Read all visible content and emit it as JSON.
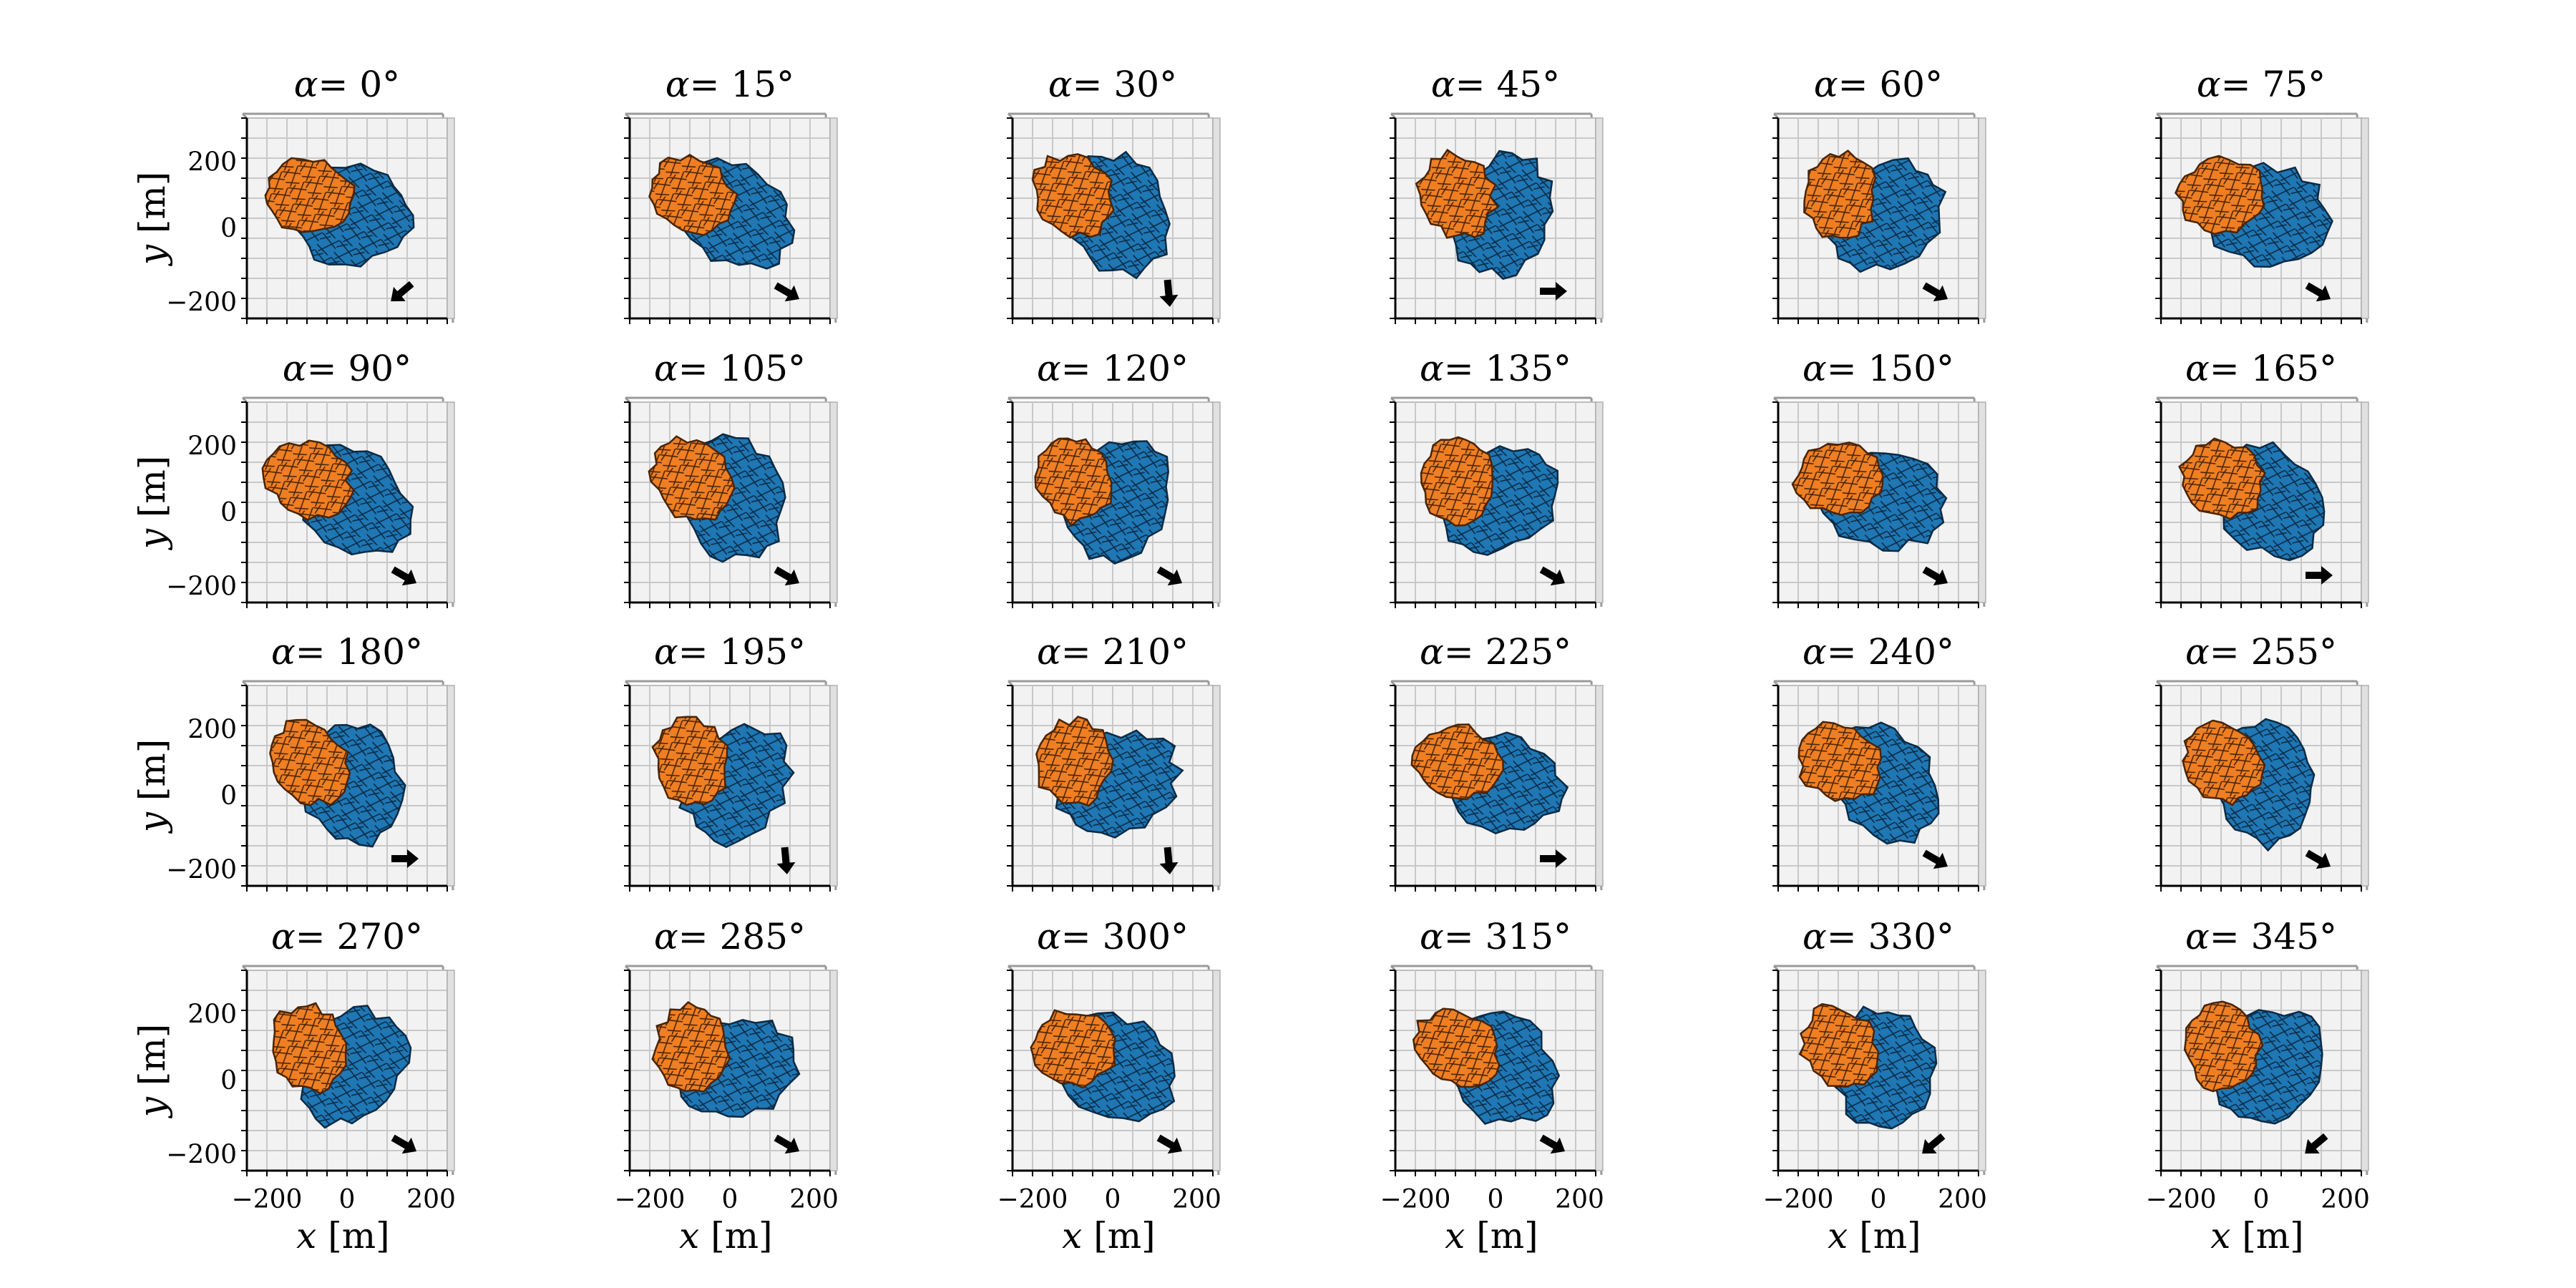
{
  "figure": {
    "title_prefix": "α=",
    "degree_symbol": "°",
    "axes": {
      "x_label_var": "x",
      "x_label_unit": " [m]",
      "y_label_var": "y",
      "y_label_unit": " [m]",
      "x_ticks": [
        "−200",
        "0",
        "200"
      ],
      "y_ticks": [
        "200",
        "0",
        "−200"
      ]
    },
    "colors": {
      "orange": "#ef7f22",
      "blue": "#1f77b4",
      "grid": "#c8c8c8",
      "pane": "#f2f2f2"
    },
    "panels": [
      {
        "alpha": "0",
        "arrow": "sw"
      },
      {
        "alpha": "15",
        "arrow": "se"
      },
      {
        "alpha": "30",
        "arrow": "s"
      },
      {
        "alpha": "45",
        "arrow": "e"
      },
      {
        "alpha": "60",
        "arrow": "se"
      },
      {
        "alpha": "75",
        "arrow": "se"
      },
      {
        "alpha": "90",
        "arrow": "se"
      },
      {
        "alpha": "105",
        "arrow": "se"
      },
      {
        "alpha": "120",
        "arrow": "se"
      },
      {
        "alpha": "135",
        "arrow": "se"
      },
      {
        "alpha": "150",
        "arrow": "se"
      },
      {
        "alpha": "165",
        "arrow": "e"
      },
      {
        "alpha": "180",
        "arrow": "e"
      },
      {
        "alpha": "195",
        "arrow": "s"
      },
      {
        "alpha": "210",
        "arrow": "s"
      },
      {
        "alpha": "225",
        "arrow": "e"
      },
      {
        "alpha": "240",
        "arrow": "se"
      },
      {
        "alpha": "255",
        "arrow": "se"
      },
      {
        "alpha": "270",
        "arrow": "se"
      },
      {
        "alpha": "285",
        "arrow": "se"
      },
      {
        "alpha": "300",
        "arrow": "se"
      },
      {
        "alpha": "315",
        "arrow": "se"
      },
      {
        "alpha": "330",
        "arrow": "sw"
      },
      {
        "alpha": "345",
        "arrow": "sw"
      }
    ]
  }
}
